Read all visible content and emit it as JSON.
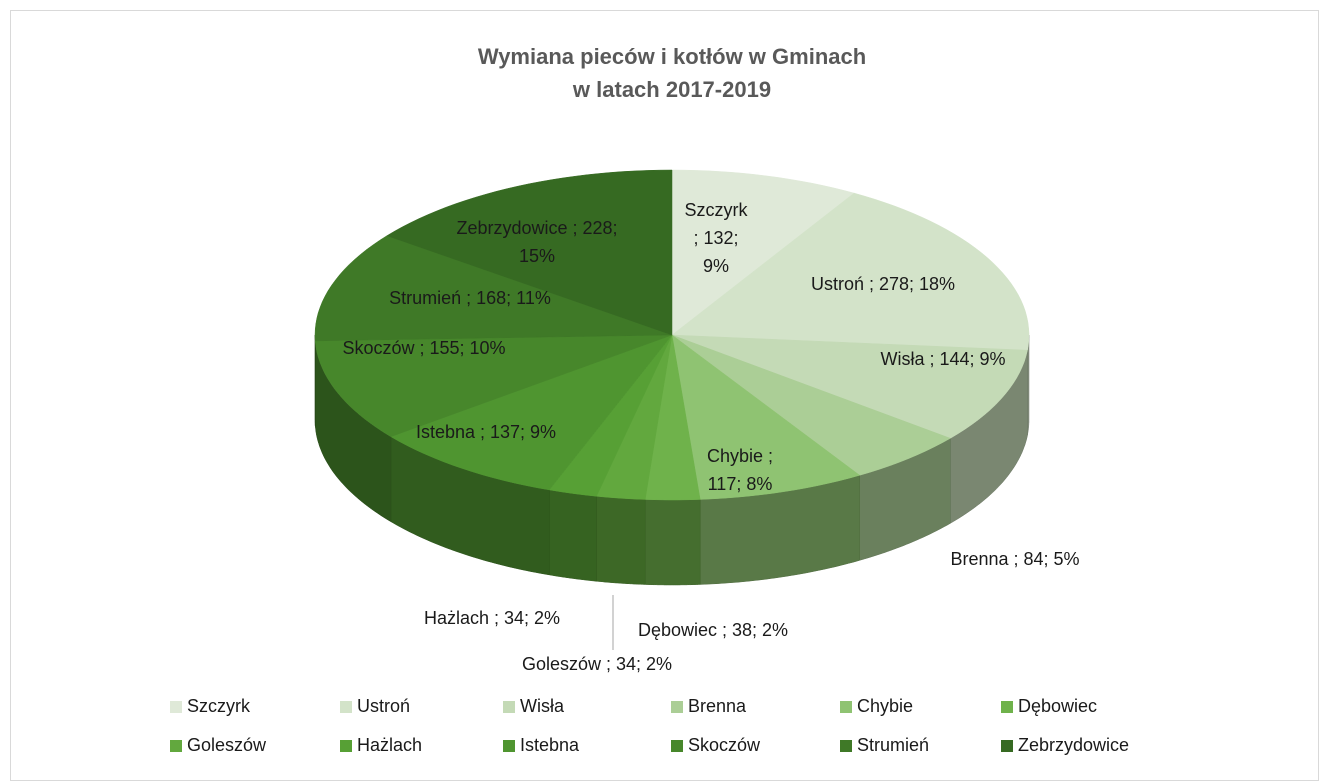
{
  "chart_data": {
    "type": "pie3d",
    "title": "Wymiana pieców i kotłów w Gminach\nw latach 2017-2019",
    "categories": [
      "Szczyrk",
      "Ustroń",
      "Wisła",
      "Brenna",
      "Chybie",
      "Dębowiec",
      "Goleszów",
      "Hażlach",
      "Istebna",
      "Skoczów",
      "Strumień",
      "Zebrzydowice"
    ],
    "values": [
      132,
      278,
      144,
      84,
      117,
      38,
      34,
      34,
      137,
      155,
      168,
      228
    ],
    "value_labels": [
      "Szczyrk\n; 132;\n9%",
      "Ustroń ; 278; 18%",
      "Wisła ; 144; 9%",
      "Brenna ; 84; 5%",
      "Chybie ;\n117; 8%",
      "Dębowiec ; 38; 2%",
      "Goleszów ; 34; 2%",
      "Hażlach ; 34; 2%",
      "Istebna ; 137; 9%",
      "Skoczów ; 155; 10%",
      "Strumień ; 168; 11%",
      "Zebrzydowice ; 228;\n15%"
    ],
    "colors": [
      "#dfe9d8",
      "#d3e3c9",
      "#c4dab6",
      "#abce96",
      "#8fc372",
      "#6fb24b",
      "#62a83e",
      "#57a035",
      "#4f9530",
      "#47872b",
      "#3f7927",
      "#366a22"
    ],
    "legend": "bottom"
  }
}
